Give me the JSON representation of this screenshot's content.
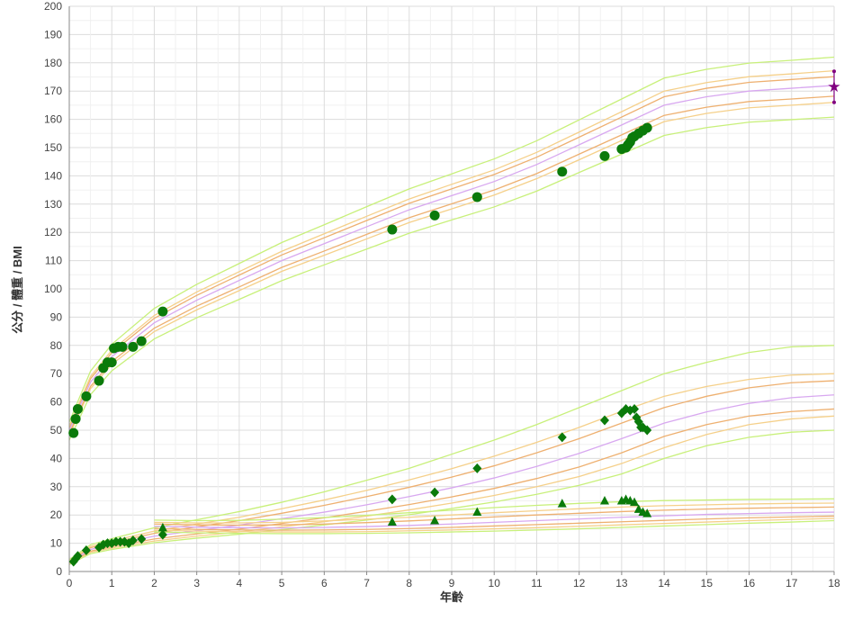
{
  "chart_data": {
    "type": "line",
    "xlabel": "年齡",
    "ylabel": "公分 / 體重 / BMI",
    "xlim": [
      0,
      18
    ],
    "ylim": [
      0,
      200
    ],
    "xticks": [
      0,
      1,
      2,
      3,
      4,
      5,
      6,
      7,
      8,
      9,
      10,
      11,
      12,
      13,
      14,
      15,
      16,
      17,
      18
    ],
    "yticks": [
      0,
      10,
      20,
      30,
      40,
      50,
      60,
      70,
      80,
      90,
      100,
      110,
      120,
      130,
      140,
      150,
      160,
      170,
      180,
      190,
      200
    ],
    "grid": true,
    "colors": {
      "p3_97": "#c8f07a",
      "p10_90": "#f5d08a",
      "p25_75": "#eeb070",
      "p50": "#d8a8f0",
      "marker": "#0a7a0a",
      "target": "#800080"
    },
    "reference_ages": [
      0,
      0.5,
      1,
      2,
      3,
      4,
      5,
      6,
      7,
      8,
      9,
      10,
      11,
      12,
      13,
      14,
      15,
      16,
      17,
      18
    ],
    "reference_curves": {
      "height": {
        "p3": [
          46.5,
          62.6,
          71,
          82.3,
          89.8,
          96.3,
          102.9,
          108.5,
          114.1,
          119.7,
          124.4,
          129,
          134.6,
          141.2,
          147.7,
          154.3,
          157.1,
          159,
          159.9,
          160.8
        ],
        "p10": [
          48.2,
          64.7,
          73.3,
          84.9,
          92.6,
          99.4,
          106.2,
          111.9,
          117.7,
          123.5,
          128.3,
          133.2,
          139,
          145.7,
          152.5,
          159.2,
          162.1,
          164.1,
          165,
          166
        ],
        "p25": [
          48.9,
          65.5,
          74.3,
          86.1,
          93.9,
          100.7,
          107.6,
          113.4,
          119.3,
          125.2,
          130.1,
          135,
          140.8,
          147.7,
          154.5,
          161.4,
          164.3,
          166.3,
          167.2,
          168.2
        ],
        "p50": [
          50,
          67,
          76,
          88,
          96,
          103,
          110,
          116,
          122,
          128,
          133,
          138,
          144,
          151,
          158,
          165,
          168,
          170,
          171,
          172
        ],
        "p75": [
          50.9,
          68.2,
          77.4,
          89.6,
          97.7,
          104.9,
          112,
          118.1,
          124.2,
          130.3,
          135.4,
          140.5,
          146.6,
          153.7,
          160.8,
          168,
          171,
          173.1,
          174.1,
          175.1
        ],
        "p90": [
          51.5,
          69,
          78.3,
          90.6,
          98.9,
          106.1,
          113.3,
          119.5,
          125.7,
          131.8,
          137,
          142.1,
          148.3,
          155.5,
          162.7,
          170,
          173,
          175.1,
          176.1,
          177.2
        ],
        "p97": [
          52.9,
          70.9,
          80.4,
          93.1,
          101.6,
          109,
          116.4,
          122.7,
          129.1,
          135.4,
          140.7,
          146,
          152.4,
          159.8,
          167.2,
          174.6,
          177.7,
          179.9,
          180.9,
          182
        ]
      },
      "weight": {
        "p3": [
          2.5,
          6.3,
          7.8,
          10.2,
          11.8,
          13.2,
          14.8,
          16.5,
          18.2,
          20.1,
          22.3,
          24.6,
          27.3,
          30.5,
          34.5,
          40,
          44.5,
          47.5,
          49.3,
          50
        ],
        "p10": [
          2.8,
          6.8,
          8.3,
          10.8,
          12.5,
          14,
          15.8,
          17.6,
          19.6,
          21.8,
          24.2,
          26.9,
          30,
          33.6,
          38.2,
          43.8,
          48.5,
          52,
          54,
          55
        ],
        "p25": [
          3,
          7.2,
          8.8,
          11.5,
          13.3,
          15,
          17,
          19,
          21.3,
          23.7,
          26.4,
          29.4,
          32.9,
          37,
          42,
          47.8,
          52,
          55,
          56.6,
          57.5
        ],
        "p50": [
          3.3,
          7.8,
          9.5,
          12.5,
          14.5,
          16.4,
          18.7,
          21,
          23.6,
          26.5,
          29.6,
          33.1,
          37.2,
          41.8,
          47,
          52.5,
          56.5,
          59.5,
          61.5,
          62.5
        ],
        "p75": [
          3.6,
          8.4,
          10.2,
          13.5,
          15.8,
          18,
          20.6,
          23.4,
          26.5,
          29.8,
          33.4,
          37.4,
          42,
          47,
          52.5,
          58,
          62,
          65,
          66.8,
          67.5
        ],
        "p90": [
          3.8,
          8.9,
          10.8,
          14.3,
          16.8,
          19.2,
          22.2,
          25.3,
          28.7,
          32.4,
          36.4,
          40.8,
          45.7,
          51,
          56.7,
          62,
          65.5,
          68,
          69.5,
          70
        ],
        "p97": [
          4.2,
          9.5,
          11.6,
          15.5,
          18.3,
          21.2,
          24.5,
          28.2,
          32.3,
          36.5,
          41.5,
          46.5,
          52,
          58,
          64,
          70,
          74,
          77.5,
          79.5,
          80
        ]
      },
      "bmi_ages": [
        2,
        3,
        4,
        5,
        6,
        7,
        8,
        9,
        10,
        11,
        12,
        13,
        14,
        15,
        16,
        17,
        18
      ],
      "bmi": {
        "p3": [
          14,
          13.7,
          13.5,
          13.4,
          13.4,
          13.5,
          13.7,
          14,
          14.3,
          14.7,
          15.1,
          15.6,
          16.1,
          16.6,
          17.1,
          17.5,
          18
        ],
        "p10": [
          14.6,
          14.3,
          14.1,
          14,
          14,
          14.1,
          14.4,
          14.7,
          15.1,
          15.5,
          16,
          16.5,
          17,
          17.5,
          18,
          18.4,
          18.8
        ],
        "p25": [
          15.2,
          14.9,
          14.7,
          14.6,
          14.7,
          14.9,
          15.2,
          15.6,
          16.1,
          16.6,
          17.1,
          17.6,
          18.1,
          18.6,
          19,
          19.3,
          19.6
        ],
        "p50": [
          16,
          15.7,
          15.5,
          15.4,
          15.6,
          15.9,
          16.3,
          16.8,
          17.4,
          18,
          18.6,
          19.2,
          19.7,
          20.2,
          20.5,
          20.8,
          21
        ],
        "p75": [
          16.8,
          16.5,
          16.4,
          16.5,
          16.8,
          17.3,
          17.9,
          18.6,
          19.3,
          20,
          20.6,
          21.2,
          21.7,
          22.1,
          22.4,
          22.6,
          22.8
        ],
        "p90": [
          17.4,
          17.2,
          17.2,
          17.4,
          17.9,
          18.5,
          19.2,
          20,
          20.8,
          21.5,
          22.2,
          22.8,
          23.3,
          23.6,
          23.9,
          24.1,
          24.2
        ],
        "p97": [
          18.2,
          18,
          18.1,
          18.5,
          19.1,
          19.9,
          20.8,
          21.7,
          22.6,
          23.4,
          24.1,
          24.7,
          25.1,
          25.3,
          25.5,
          25.6,
          25.7
        ]
      }
    },
    "series": [
      {
        "name": "height",
        "marker": "circle",
        "points": [
          [
            0.1,
            49
          ],
          [
            0.15,
            54
          ],
          [
            0.2,
            57.5
          ],
          [
            0.4,
            62
          ],
          [
            0.7,
            67.5
          ],
          [
            0.8,
            72
          ],
          [
            0.9,
            74
          ],
          [
            1.0,
            74
          ],
          [
            1.05,
            79
          ],
          [
            1.15,
            79.5
          ],
          [
            1.25,
            79.5
          ],
          [
            1.5,
            79.5
          ],
          [
            1.7,
            81.5
          ],
          [
            2.2,
            92
          ],
          [
            7.6,
            121
          ],
          [
            8.6,
            126
          ],
          [
            9.6,
            132.5
          ],
          [
            11.6,
            141.5
          ],
          [
            12.6,
            147
          ],
          [
            13.0,
            149.5
          ],
          [
            13.1,
            150
          ],
          [
            13.15,
            151
          ],
          [
            13.2,
            152
          ],
          [
            13.25,
            153.5
          ],
          [
            13.3,
            154
          ],
          [
            13.4,
            155
          ],
          [
            13.5,
            156
          ],
          [
            13.6,
            157
          ]
        ]
      },
      {
        "name": "weight",
        "marker": "diamond",
        "points": [
          [
            0.1,
            3.5
          ],
          [
            0.15,
            4.5
          ],
          [
            0.2,
            5.5
          ],
          [
            0.4,
            7.5
          ],
          [
            0.7,
            8.5
          ],
          [
            0.8,
            9.5
          ],
          [
            0.9,
            10
          ],
          [
            1.0,
            10
          ],
          [
            1.1,
            10.5
          ],
          [
            1.2,
            10.5
          ],
          [
            1.3,
            10.5
          ],
          [
            1.4,
            10
          ],
          [
            1.5,
            11
          ],
          [
            1.7,
            11.5
          ],
          [
            2.2,
            13
          ],
          [
            7.6,
            25.5
          ],
          [
            8.6,
            28
          ],
          [
            9.6,
            36.5
          ],
          [
            11.6,
            47.5
          ],
          [
            12.6,
            53.5
          ],
          [
            13.0,
            56
          ],
          [
            13.1,
            57.5
          ],
          [
            13.2,
            57
          ],
          [
            13.3,
            57.5
          ],
          [
            13.35,
            54.5
          ],
          [
            13.4,
            53
          ],
          [
            13.45,
            51
          ],
          [
            13.5,
            51
          ],
          [
            13.6,
            50
          ]
        ]
      },
      {
        "name": "bmi",
        "marker": "triangle",
        "points": [
          [
            2.2,
            15.5
          ],
          [
            7.6,
            17.5
          ],
          [
            8.6,
            18
          ],
          [
            9.6,
            21
          ],
          [
            11.6,
            24
          ],
          [
            12.6,
            25
          ],
          [
            13.0,
            25
          ],
          [
            13.1,
            25.5
          ],
          [
            13.2,
            25
          ],
          [
            13.3,
            24.5
          ],
          [
            13.4,
            22
          ],
          [
            13.5,
            21
          ],
          [
            13.6,
            20.5
          ]
        ]
      }
    ],
    "target_height": {
      "age": 18,
      "value": 171.5,
      "range": [
        166,
        177
      ]
    }
  }
}
